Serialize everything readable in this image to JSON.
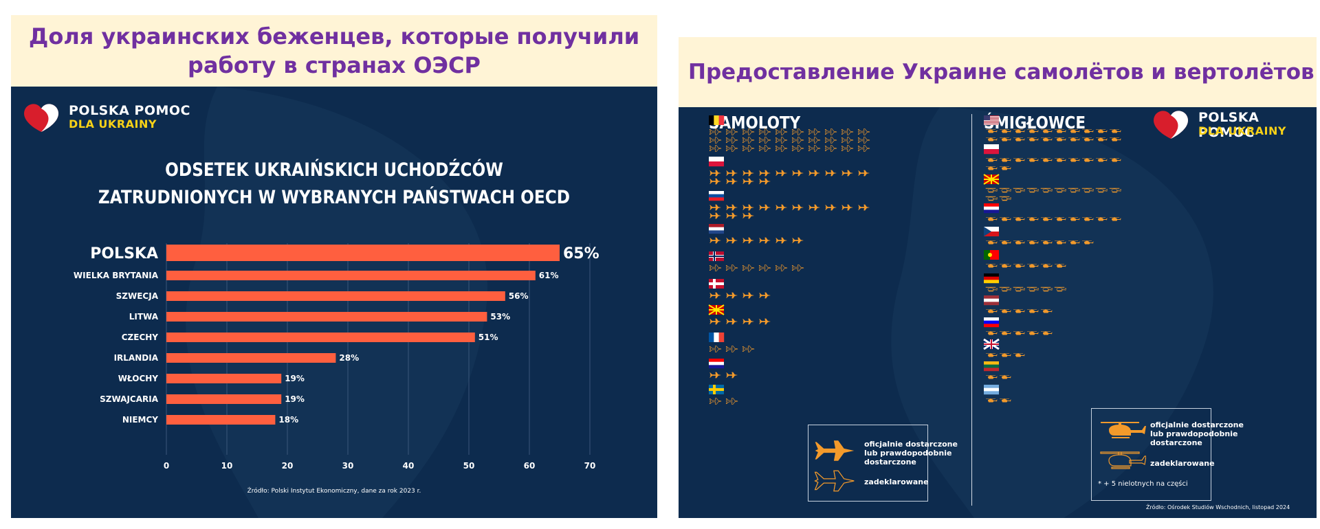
{
  "left": {
    "header": "Доля украинских беженцев, которые получили работу в странах ОЭСР",
    "logo": {
      "line1": "POLSKA POMOC",
      "line2": "DLA UKRAINY"
    },
    "title_line1": "ODSETEK UKRAIŃSKICH UCHODŹCÓW",
    "title_line2": "ZATRUDNIONYCH W WYBRANYCH PAŃSTWACH OECD",
    "source": "Źródło: Polski Instytut Ekonomiczny, dane za rok 2023 r."
  },
  "right": {
    "header": "Предоставление Украине самолётов и вертолётов",
    "logo": {
      "line1": "POLSKA POMOC",
      "line2": "DLA UKRAINY"
    },
    "planes_heading": "SAMOLOTY",
    "helis_heading": "ŚMIGŁOWCE",
    "legend_planes": {
      "official": [
        "oficjalnie dostarczone",
        "lub prawdopodobnie",
        "dostarczone"
      ],
      "declared": "zadeklarowane"
    },
    "legend_helis": {
      "official": [
        "oficjalnie dostarczone",
        "lub prawdopodobnie",
        "dostarczone"
      ],
      "declared": "zadeklarowane",
      "note": "* + 5 nielotnych na części"
    },
    "source": "Źródło: Ośrodek Studiów Wschodnich, listopad 2024"
  },
  "colors": {
    "navy": "#0d2b4e",
    "bar": "#ff5f3f",
    "icon": "#f39a2b",
    "title": "#7030a0",
    "band": "#fff4d6"
  },
  "chart_data": [
    {
      "type": "bar",
      "orientation": "horizontal",
      "title": "ODSETEK UKRAIŃSKICH UCHODŹCÓW ZATRUDNIONYCH W WYBRANYCH PAŃSTWACH OECD",
      "categories": [
        "POLSKA",
        "WIELKA BRYTANIA",
        "SZWECJA",
        "LITWA",
        "CZECHY",
        "IRLANDIA",
        "WŁOCHY",
        "SZWAJCARIA",
        "NIEMCY"
      ],
      "values": [
        65,
        61,
        56,
        53,
        51,
        28,
        19,
        19,
        18
      ],
      "value_labels": [
        "65%",
        "61%",
        "56%",
        "53%",
        "51%",
        "28%",
        "19%",
        "19%",
        "18%"
      ],
      "xlim": [
        0,
        70
      ],
      "xticks": [
        0,
        10,
        20,
        30,
        40,
        50,
        60,
        70
      ],
      "grid": true
    },
    {
      "type": "table",
      "title": "SAMOLOTY",
      "rows": [
        {
          "flag": "Belgium",
          "official": 0,
          "declared": 30
        },
        {
          "flag": "Poland",
          "official": 14,
          "declared": 0
        },
        {
          "flag": "Slovakia",
          "official": 13,
          "declared": 0
        },
        {
          "flag": "Netherlands",
          "official": 6,
          "declared": 0
        },
        {
          "flag": "Norway",
          "official": 0,
          "declared": 6
        },
        {
          "flag": "Denmark",
          "official": 4,
          "declared": 0
        },
        {
          "flag": "North Macedonia",
          "official": 4,
          "declared": 0
        },
        {
          "flag": "France",
          "official": 0,
          "declared": 3
        },
        {
          "flag": "Croatia",
          "official": 2,
          "declared": 0
        },
        {
          "flag": "Sweden",
          "official": 0,
          "declared": 2
        }
      ]
    },
    {
      "type": "table",
      "title": "ŚMIGŁOWCE",
      "rows": [
        {
          "flag": "United States",
          "official": 20,
          "declared": 0
        },
        {
          "flag": "Poland",
          "official": 12,
          "declared": 0
        },
        {
          "flag": "North Macedonia",
          "official": 0,
          "declared": 12
        },
        {
          "flag": "Croatia",
          "official": 10,
          "declared": 0
        },
        {
          "flag": "Czech Republic",
          "official": 8,
          "declared": 0
        },
        {
          "flag": "Portugal",
          "official": 6,
          "declared": 0
        },
        {
          "flag": "Germany",
          "official": 0,
          "declared": 6
        },
        {
          "flag": "Latvia",
          "official": 5,
          "declared": 0
        },
        {
          "flag": "Slovenia",
          "official": 5,
          "declared": 0
        },
        {
          "flag": "United Kingdom",
          "official": 3,
          "declared": 0
        },
        {
          "flag": "Lithuania",
          "official": 2,
          "declared": 0
        },
        {
          "flag": "Argentina",
          "official": 2,
          "declared": 0
        }
      ]
    }
  ]
}
